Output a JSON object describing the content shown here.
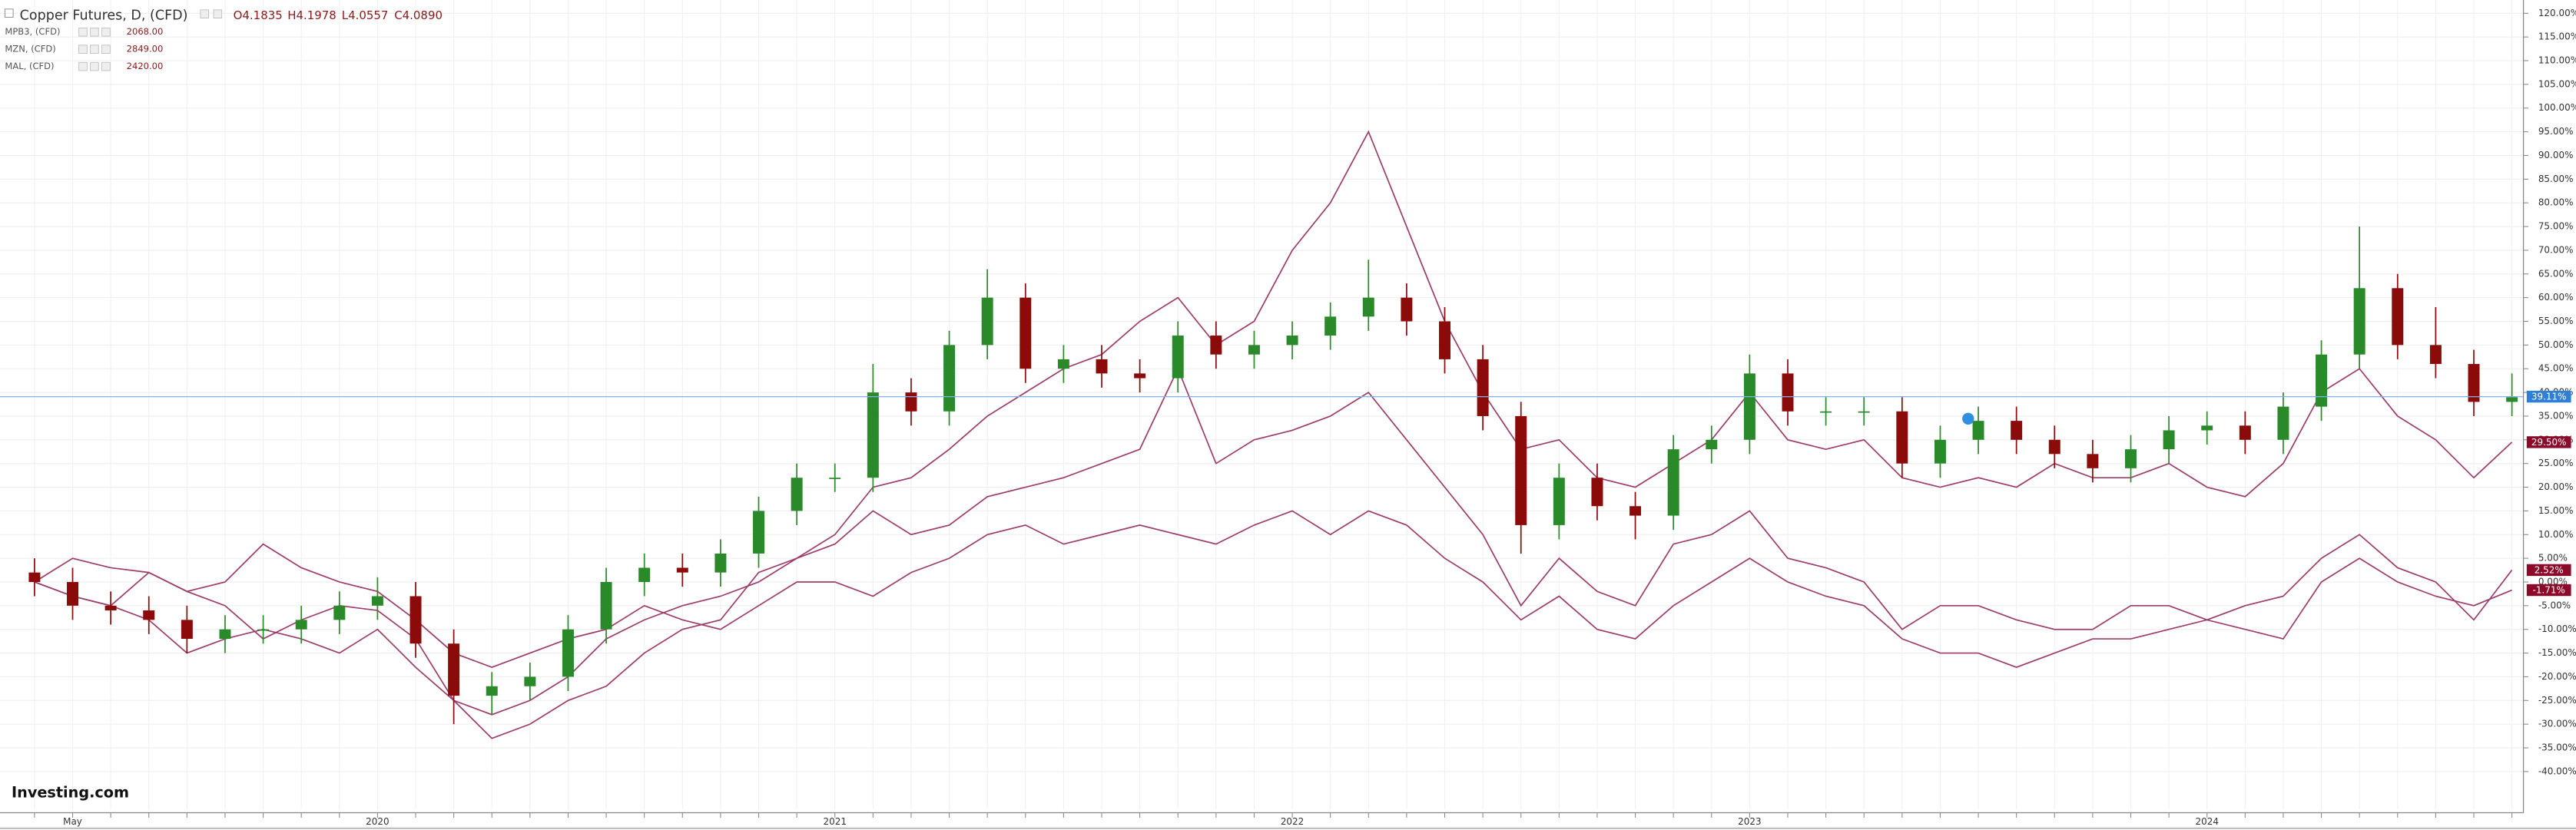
{
  "chart_data": {
    "type": "candlestick",
    "name": "Copper Futures, D, (CFD)",
    "ohlc_labels": [
      "O4.1835",
      "H4.1978",
      "L4.0557",
      "C4.0890"
    ],
    "logo": "Investing.com",
    "up_color": "#2a8a2a",
    "down_color": "#8b0a0a",
    "grid": true,
    "categories": [
      null,
      "May",
      null,
      null,
      null,
      null,
      null,
      null,
      null,
      "2020",
      null,
      null,
      null,
      null,
      null,
      null,
      null,
      null,
      null,
      null,
      null,
      "2021",
      null,
      null,
      null,
      null,
      null,
      null,
      null,
      null,
      null,
      null,
      null,
      "2022",
      null,
      null,
      null,
      null,
      null,
      null,
      null,
      null,
      null,
      null,
      null,
      "2023",
      null,
      null,
      null,
      null,
      null,
      null,
      null,
      null,
      null,
      null,
      null,
      "2024",
      null,
      null,
      null,
      null,
      null,
      null,
      null,
      null
    ],
    "open": [
      2,
      0,
      -5,
      -6,
      -8,
      -12,
      -10,
      -10,
      -8,
      -5,
      -3,
      -13,
      -24,
      -22,
      -20,
      -10,
      0,
      3,
      2,
      6,
      15,
      22,
      22,
      40,
      36,
      50,
      60,
      45,
      47,
      44,
      43,
      52,
      48,
      50,
      52,
      56,
      60,
      55,
      47,
      35,
      12,
      22,
      16,
      14,
      28,
      30,
      44,
      36,
      36,
      36,
      25,
      30,
      34,
      30,
      27,
      24,
      28,
      32,
      33,
      30,
      37,
      48,
      62,
      50,
      46,
      38
    ],
    "high": [
      5,
      3,
      -2,
      -3,
      -5,
      -7,
      -7,
      -5,
      -2,
      1,
      0,
      -10,
      -19,
      -17,
      -7,
      3,
      6,
      6,
      9,
      18,
      25,
      25,
      46,
      43,
      53,
      66,
      63,
      50,
      50,
      47,
      55,
      55,
      53,
      55,
      59,
      68,
      63,
      58,
      50,
      38,
      25,
      25,
      19,
      31,
      33,
      48,
      47,
      39,
      39,
      39,
      33,
      37,
      37,
      33,
      30,
      31,
      35,
      36,
      36,
      40,
      51,
      75,
      65,
      58,
      49,
      44
    ],
    "low": [
      -3,
      -8,
      -9,
      -11,
      -15,
      -15,
      -13,
      -13,
      -11,
      -8,
      -16,
      -30,
      -28,
      -25,
      -23,
      -13,
      -3,
      -1,
      -1,
      3,
      12,
      19,
      19,
      33,
      33,
      47,
      42,
      42,
      41,
      40,
      40,
      45,
      45,
      47,
      49,
      53,
      52,
      44,
      32,
      6,
      9,
      13,
      9,
      11,
      25,
      27,
      33,
      33,
      33,
      22,
      22,
      27,
      27,
      24,
      21,
      21,
      25,
      29,
      27,
      27,
      34,
      45,
      47,
      43,
      35,
      35
    ],
    "close": [
      0,
      -5,
      -6,
      -8,
      -12,
      -10,
      -10,
      -8,
      -5,
      -3,
      -13,
      -24,
      -22,
      -20,
      -10,
      0,
      3,
      2,
      6,
      15,
      22,
      22,
      40,
      36,
      50,
      60,
      45,
      47,
      44,
      43,
      52,
      48,
      50,
      52,
      56,
      60,
      55,
      47,
      35,
      12,
      22,
      16,
      14,
      28,
      30,
      44,
      36,
      36,
      36,
      25,
      30,
      34,
      30,
      27,
      24,
      28,
      32,
      33,
      30,
      37,
      48,
      62,
      50,
      46,
      38,
      39
    ],
    "series": [
      {
        "name": "MPB3, (CFD)",
        "price": "2068.00",
        "color": "#9c3d6c",
        "values": [
          0,
          5,
          3,
          2,
          -2,
          0,
          8,
          3,
          0,
          -2,
          -8,
          -15,
          -18,
          -15,
          -12,
          -10,
          -5,
          -8,
          -10,
          -5,
          0,
          0,
          -3,
          2,
          5,
          10,
          12,
          8,
          10,
          12,
          10,
          8,
          12,
          15,
          10,
          15,
          12,
          5,
          0,
          -8,
          -3,
          -10,
          -12,
          -5,
          0,
          5,
          0,
          -3,
          -5,
          -12,
          -15,
          -15,
          -18,
          -15,
          -12,
          -12,
          -10,
          -8,
          -10,
          -12,
          0,
          5,
          0,
          -3,
          -5,
          -1.71
        ]
      },
      {
        "name": "MZN, (CFD)",
        "price": "2849.00",
        "color": "#9c3d6c",
        "values": [
          0,
          -3,
          -5,
          -8,
          -15,
          -12,
          -10,
          -12,
          -15,
          -10,
          -18,
          -25,
          -28,
          -25,
          -20,
          -12,
          -8,
          -5,
          -3,
          0,
          5,
          8,
          15,
          10,
          12,
          18,
          20,
          22,
          25,
          28,
          45,
          25,
          30,
          32,
          35,
          40,
          30,
          20,
          10,
          -5,
          5,
          -2,
          -5,
          8,
          10,
          15,
          5,
          3,
          0,
          -10,
          -5,
          -5,
          -8,
          -10,
          -10,
          -5,
          -5,
          -8,
          -5,
          -3,
          5,
          10,
          3,
          0,
          -8,
          2.52
        ]
      },
      {
        "name": "MAL, (CFD)",
        "price": "2420.00",
        "color": "#9c3d6c",
        "values": [
          0,
          -3,
          -5,
          2,
          -2,
          -5,
          -12,
          -8,
          -5,
          -6,
          -12,
          -25,
          -33,
          -30,
          -25,
          -22,
          -15,
          -10,
          -8,
          2,
          5,
          10,
          20,
          22,
          28,
          35,
          40,
          45,
          48,
          55,
          60,
          50,
          55,
          70,
          80,
          95,
          75,
          55,
          40,
          28,
          30,
          22,
          20,
          25,
          30,
          40,
          30,
          28,
          30,
          22,
          20,
          22,
          20,
          25,
          22,
          22,
          25,
          20,
          18,
          25,
          40,
          45,
          35,
          30,
          22,
          29.5
        ]
      }
    ],
    "price_tags": [
      {
        "value": 39.11,
        "label": "39.11%",
        "color": "#2f7fd6"
      },
      {
        "value": 29.5,
        "label": "29.50%",
        "color": "#8b0a2a"
      },
      {
        "value": 2.52,
        "label": "2.52%",
        "color": "#8b0a2a"
      },
      {
        "value": -1.71,
        "label": "-1.71%",
        "color": "#8b0a2a"
      }
    ],
    "ylim": [
      -48,
      122.8
    ],
    "yticks": [
      {
        "value": 120,
        "label": "120.00%"
      },
      {
        "value": 115,
        "label": "115.00%"
      },
      {
        "value": 110,
        "label": "110.00%"
      },
      {
        "value": 105,
        "label": "105.00%"
      },
      {
        "value": 100,
        "label": "100.00%"
      },
      {
        "value": 95,
        "label": "95.00%"
      },
      {
        "value": 90,
        "label": "90.00%"
      },
      {
        "value": 85,
        "label": "85.00%"
      },
      {
        "value": 80,
        "label": "80.00%"
      },
      {
        "value": 75,
        "label": "75.00%"
      },
      {
        "value": 70,
        "label": "70.00%"
      },
      {
        "value": 65,
        "label": "65.00%"
      },
      {
        "value": 60,
        "label": "60.00%"
      },
      {
        "value": 55,
        "label": "55.00%"
      },
      {
        "value": 50,
        "label": "50.00%"
      },
      {
        "value": 45,
        "label": "45.00%"
      },
      {
        "value": 40,
        "label": "40.00%"
      },
      {
        "value": 35,
        "label": "35.00%"
      },
      {
        "value": 30,
        "label": "30.00%"
      },
      {
        "value": 25,
        "label": "25.00%"
      },
      {
        "value": 20,
        "label": "20.00%"
      },
      {
        "value": 15,
        "label": "15.00%"
      },
      {
        "value": 10,
        "label": "10.00%"
      },
      {
        "value": 5,
        "label": "5.00%"
      },
      {
        "value": 0,
        "label": "0.00%"
      },
      {
        "value": -5,
        "label": "-5.00%"
      },
      {
        "value": -10,
        "label": "-10.00%"
      },
      {
        "value": -15,
        "label": "-15.00%"
      },
      {
        "value": -20,
        "label": "-20.00%"
      },
      {
        "value": -25,
        "label": "-25.00%"
      },
      {
        "value": -30,
        "label": "-30.00%"
      },
      {
        "value": -35,
        "label": "-35.00%"
      },
      {
        "value": -40,
        "label": "-40.00%"
      }
    ]
  }
}
